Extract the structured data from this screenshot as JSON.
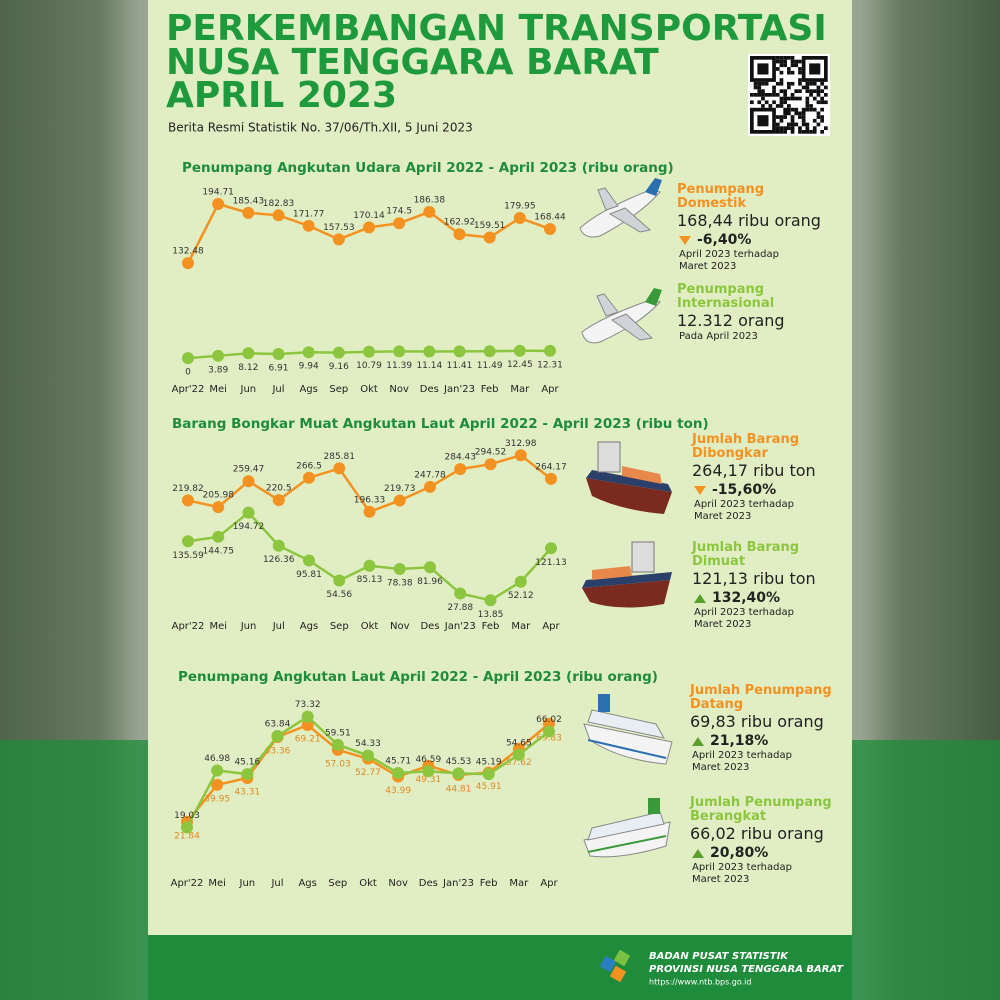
{
  "header": {
    "title": [
      "PERKEMBANGAN TRANSPORTASI",
      "NUSA TENGGARA BARAT",
      "APRIL 2023"
    ],
    "subtitle": "Berita Resmi Statistik No. 37/06/Th.XII, 5 Juni 2023"
  },
  "chart_data": [
    {
      "type": "line",
      "title": "Penumpang Angkutan Udara April 2022 - April 2023 (ribu orang)",
      "categories": [
        "Apr'22",
        "Mei",
        "Jun",
        "Jul",
        "Ags",
        "Sep",
        "Okt",
        "Nov",
        "Des",
        "Jan'23",
        "Feb",
        "Mar",
        "Apr"
      ],
      "ylim": [
        20,
        220
      ],
      "y2lim": [
        -20,
        300
      ],
      "series": [
        {
          "name": "Penumpang Domestik",
          "color": "#f39220",
          "label_position": "above",
          "values": [
            132.48,
            194.71,
            185.43,
            182.83,
            171.77,
            157.53,
            170.14,
            174.5,
            186.38,
            162.92,
            159.51,
            179.95,
            168.44
          ]
        },
        {
          "name": "Penumpang Internasional",
          "color": "#8cc63f",
          "axis": "y2",
          "label_position": "below",
          "values": [
            0,
            3.89,
            8.12,
            6.91,
            9.94,
            9.16,
            10.79,
            11.39,
            11.14,
            11.41,
            11.49,
            12.45,
            12.31
          ]
        }
      ]
    },
    {
      "type": "line",
      "title": "Barang Bongkar Muat Angkutan Laut April 2022 - April 2023 (ribu ton)",
      "categories": [
        "Apr'22",
        "Mei",
        "Jun",
        "Jul",
        "Ags",
        "Sep",
        "Okt",
        "Nov",
        "Des",
        "Jan'23",
        "Feb",
        "Mar",
        "Apr"
      ],
      "ylim": [
        0,
        330
      ],
      "series": [
        {
          "name": "Jumlah Barang Dibongkar",
          "color": "#f39220",
          "label_position": "above",
          "values": [
            219.82,
            205.98,
            259.47,
            220.5,
            266.5,
            285.81,
            196.33,
            219.73,
            247.78,
            284.43,
            294.52,
            312.98,
            264.17
          ]
        },
        {
          "name": "Jumlah Barang Dimuat",
          "color": "#8cc63f",
          "label_position": "below",
          "values": [
            135.59,
            144.75,
            194.72,
            126.36,
            95.81,
            54.56,
            85.13,
            78.38,
            81.96,
            27.88,
            13.85,
            52.12,
            121.13
          ]
        }
      ]
    },
    {
      "type": "line",
      "title": "Penumpang Angkutan Laut April 2022 - April 2023 (ribu orang)",
      "categories": [
        "Apr'22",
        "Mei",
        "Jun",
        "Jul",
        "Ags",
        "Sep",
        "Okt",
        "Nov",
        "Des",
        "Jan'23",
        "Feb",
        "Mar",
        "Apr"
      ],
      "ylim": [
        10,
        80
      ],
      "series": [
        {
          "name": "Jumlah Penumpang Datang",
          "color": "#f39220",
          "label_position": "below",
          "values": [
            21.84,
            39.95,
            43.31,
            63.36,
            69.21,
            57.03,
            52.77,
            43.99,
            49.31,
            44.81,
            45.91,
            57.62,
            69.83
          ]
        },
        {
          "name": "Jumlah Penumpang Berangkat",
          "color": "#8cc63f",
          "label_position": "above",
          "values": [
            19.03,
            46.98,
            45.16,
            63.84,
            73.32,
            59.51,
            54.33,
            45.71,
            46.59,
            45.53,
            45.19,
            54.65,
            66.02
          ]
        }
      ]
    }
  ],
  "panels": [
    {
      "value": "168,44 ribu orang",
      "change": "-6,40%",
      "note": [
        "April 2023 terhadap",
        "Maret  2023"
      ]
    },
    {
      "value": "12.312 orang",
      "note": [
        "Pada April 2023"
      ]
    },
    {
      "value": "264,17 ribu ton",
      "change": "-15,60%",
      "note": [
        "April 2023 terhadap",
        "Maret  2023"
      ]
    },
    {
      "value": "121,13 ribu ton",
      "change": "132,40%",
      "note": [
        "April 2023 terhadap",
        "Maret  2023"
      ]
    },
    {
      "value": "69,83 ribu orang",
      "change": "21,18%",
      "note": [
        "April 2023 terhadap",
        "Maret  2023"
      ]
    },
    {
      "value": "66,02 ribu orang",
      "change": "20,80%",
      "note": [
        "April 2023 terhadap",
        "Maret  2023"
      ]
    }
  ],
  "footer": {
    "org": "BADAN PUSAT STATISTIK",
    "region": "PROVINSI NUSA TENGGARA BARAT",
    "url": "https://www.ntb.bps.go.id"
  }
}
